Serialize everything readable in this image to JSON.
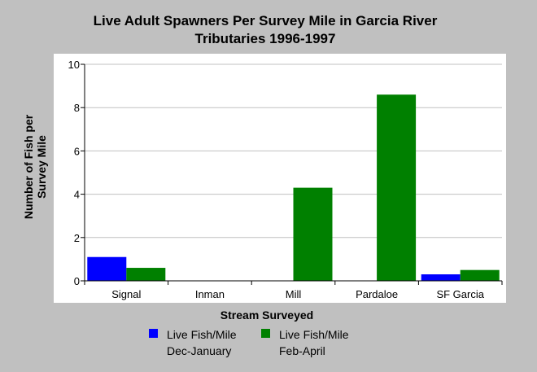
{
  "chart_data": {
    "type": "bar",
    "title_line1": "Live Adult Spawners Per Survey Mile in Garcia River",
    "title_line2": "Tributaries 1996-1997",
    "xlabel": "Stream Surveyed",
    "ylabel_line1": "Number of Fish per",
    "ylabel_line2": "Survey Mile",
    "ylim": [
      0,
      10
    ],
    "yticks": [
      "0",
      "2",
      "4",
      "6",
      "8",
      "10"
    ],
    "categories": [
      "Signal",
      "Inman",
      "Mill",
      "Pardaloe",
      "SF Garcia"
    ],
    "series": [
      {
        "name": "Live Fish/Mile Dec-January",
        "legend_line1": "Live Fish/Mile",
        "legend_line2": "Dec-January",
        "color": "#0000ff",
        "values": [
          1.1,
          0,
          0,
          0,
          0.3
        ]
      },
      {
        "name": "Live Fish/Mile Feb-April",
        "legend_line1": "Live Fish/Mile",
        "legend_line2": "Feb-April",
        "color": "#008000",
        "values": [
          0.6,
          0,
          4.3,
          8.6,
          0.5
        ]
      }
    ],
    "grid": true,
    "legend_position": "bottom"
  }
}
